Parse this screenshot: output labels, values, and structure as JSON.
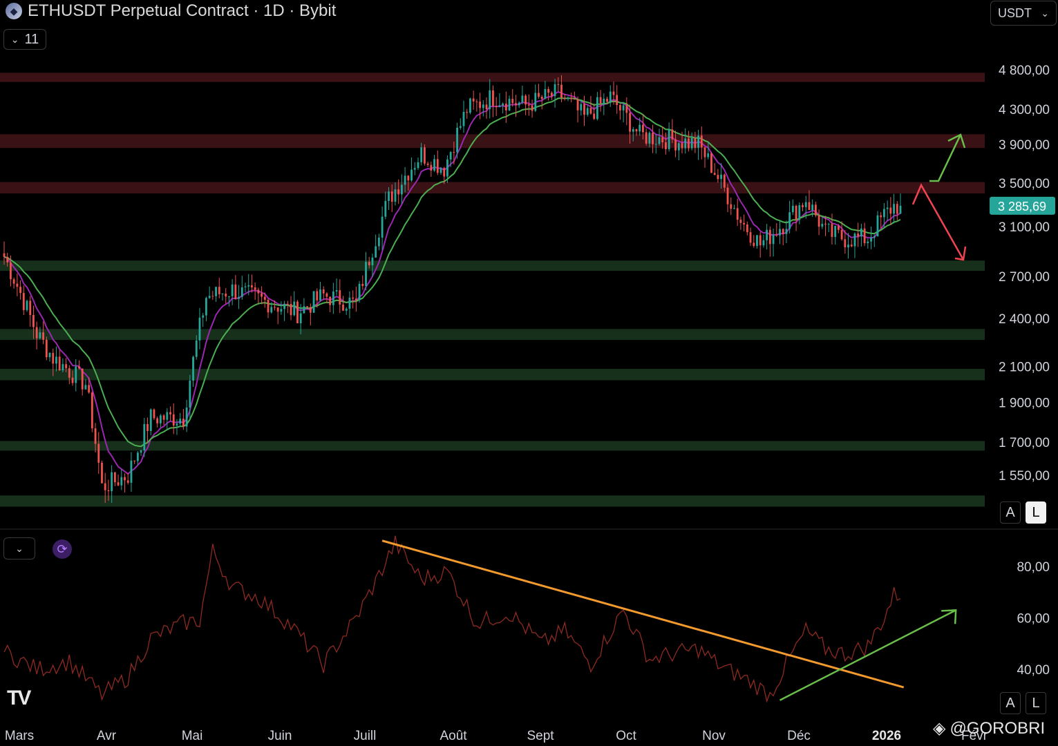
{
  "header": {
    "symbol": "ETHUSDT Perpetual Contract",
    "timeframe": "1D",
    "exchange": "Bybit",
    "title": "ETHUSDT Perpetual Contract · 1D · Bybit",
    "indicator_count": "11",
    "currency": "USDT",
    "coin_icon": "ethereum-icon"
  },
  "scale_buttons": {
    "auto": "A",
    "log": "L"
  },
  "branding": {
    "logo": "TV",
    "watermark": "@GOROBRI"
  },
  "colors": {
    "bull": "#26a69a",
    "bear": "#ef5350",
    "ma_fast": "#9c27b0",
    "ma_slow": "#4caf50",
    "resistance_zone": "#3a1216",
    "support_zone": "#17301b",
    "rsi_line": "#8e2a22",
    "trendline": "#f39a2e",
    "arrow_up": "#6abf4b",
    "arrow_down": "#f0444f",
    "price_label_bg": "#26a69a"
  },
  "chart_data": [
    {
      "type": "candlestick",
      "title": "ETHUSDT Perpetual Contract · 1D · Bybit",
      "scale": "log",
      "ylim": [
        1380,
        5000
      ],
      "y_ticks": [
        "4 800,00",
        "4 300,00",
        "3 900,00",
        "3 500,00",
        "3 100,00",
        "2 700,00",
        "2 400,00",
        "2 100,00",
        "1 900,00",
        "1 700,00",
        "1 550,00"
      ],
      "y_tick_values": [
        4800,
        4300,
        3900,
        3500,
        3100,
        2700,
        2400,
        2100,
        1900,
        1700,
        1550
      ],
      "x_labels": [
        "Mars",
        "Avr",
        "Mai",
        "Juin",
        "Juill",
        "Août",
        "Sept",
        "Oct",
        "Nov",
        "Déc",
        "2026",
        "Févr"
      ],
      "last_price": "3 285,69",
      "resistance_zones": [
        [
          4640,
          4760
        ],
        [
          3860,
          4010
        ],
        [
          3400,
          3510
        ]
      ],
      "support_zones": [
        [
          2740,
          2820
        ],
        [
          2260,
          2330
        ],
        [
          2020,
          2085
        ],
        [
          1660,
          1705
        ],
        [
          1420,
          1465
        ]
      ],
      "series": [
        {
          "name": "",
          "kind": "candles",
          "close_path": [
            [
              0,
              2850
            ],
            [
              10,
              2300
            ],
            [
              15,
              2150
            ],
            [
              25,
              2000
            ],
            [
              30,
              1500
            ],
            [
              38,
              1550
            ],
            [
              45,
              1820
            ],
            [
              55,
              1820
            ],
            [
              62,
              2550
            ],
            [
              70,
              2600
            ],
            [
              80,
              2520
            ],
            [
              90,
              2440
            ],
            [
              98,
              2560
            ],
            [
              108,
              2500
            ],
            [
              118,
              3350
            ],
            [
              128,
              3800
            ],
            [
              135,
              3650
            ],
            [
              142,
              4300
            ],
            [
              150,
              4450
            ],
            [
              160,
              4350
            ],
            [
              170,
              4500
            ],
            [
              178,
              4200
            ],
            [
              186,
              4450
            ],
            [
              195,
              4000
            ],
            [
              205,
              3950
            ],
            [
              213,
              3900
            ],
            [
              220,
              3500
            ],
            [
              226,
              3150
            ],
            [
              232,
              2950
            ],
            [
              240,
              3150
            ],
            [
              246,
              3350
            ],
            [
              252,
              3050
            ],
            [
              258,
              3000
            ],
            [
              265,
              3000
            ],
            [
              270,
              3200
            ],
            [
              273,
              3285.69
            ]
          ]
        },
        {
          "name": "",
          "kind": "ma_fast"
        },
        {
          "name": "",
          "kind": "ma_slow"
        }
      ],
      "annotations": [
        {
          "kind": "arrow",
          "color": "arrow_up",
          "direction": "up"
        },
        {
          "kind": "arrow",
          "color": "arrow_down",
          "direction": "down"
        }
      ]
    },
    {
      "type": "line",
      "title": "",
      "ylim": [
        22,
        100
      ],
      "y_ticks": [
        "80,00",
        "60,00",
        "40,00"
      ],
      "y_tick_values": [
        80,
        60,
        40
      ],
      "series": [
        {
          "name": "",
          "path": [
            [
              0,
              47
            ],
            [
              10,
              40
            ],
            [
              20,
              43
            ],
            [
              30,
              30
            ],
            [
              38,
              37
            ],
            [
              45,
              52
            ],
            [
              55,
              58
            ],
            [
              60,
              59
            ],
            [
              64,
              86
            ],
            [
              70,
              72
            ],
            [
              78,
              68
            ],
            [
              88,
              57
            ],
            [
              98,
              42
            ],
            [
              108,
              60
            ],
            [
              114,
              74
            ],
            [
              120,
              89
            ],
            [
              128,
              75
            ],
            [
              136,
              78
            ],
            [
              145,
              58
            ],
            [
              155,
              62
            ],
            [
              165,
              50
            ],
            [
              172,
              55
            ],
            [
              180,
              42
            ],
            [
              190,
              63
            ],
            [
              198,
              44
            ],
            [
              205,
              46
            ],
            [
              213,
              48
            ],
            [
              220,
              41
            ],
            [
              228,
              36
            ],
            [
              235,
              30
            ],
            [
              240,
              42
            ],
            [
              246,
              55
            ],
            [
              252,
              48
            ],
            [
              258,
              46
            ],
            [
              265,
              49
            ],
            [
              270,
              60
            ],
            [
              273,
              69
            ]
          ]
        }
      ],
      "trendline": {
        "from": [
          116,
          90
        ],
        "to": [
          276,
          33
        ]
      },
      "arrow": {
        "from": [
          238,
          28
        ],
        "to": [
          292,
          63
        ]
      }
    }
  ]
}
